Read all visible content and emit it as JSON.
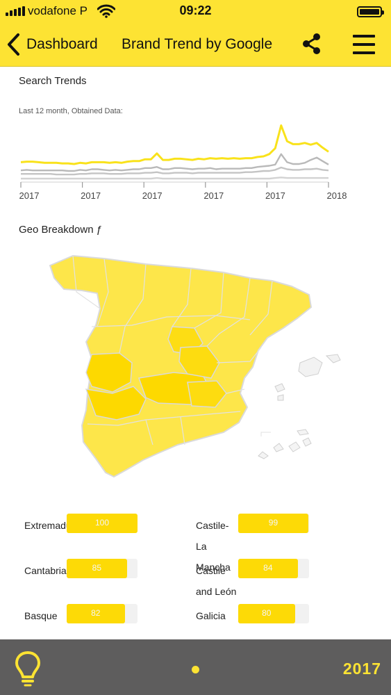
{
  "status_bar": {
    "carrier": "vodafone P",
    "time": "09:22"
  },
  "nav": {
    "back_label": "Dashboard",
    "title": "Brand Trend by Google",
    "icons": [
      "chevron-left-icon",
      "share-icon",
      "hamburger-menu-icon"
    ]
  },
  "trends": {
    "title": "Search Trends",
    "subtitle": "Last 12 month, Obtained Data:",
    "x_tick_labels": [
      "2017",
      "2017",
      "2017",
      "2017",
      "2017",
      "2018"
    ]
  },
  "chart_data": {
    "type": "line",
    "title": "Search Trends",
    "subtitle": "Last 12 month, Obtained Data:",
    "x_tick_labels": [
      "2017",
      "2017",
      "2017",
      "2017",
      "2017",
      "2018"
    ],
    "x": [
      0,
      1,
      2,
      3,
      4,
      5,
      6,
      7,
      8,
      9,
      10,
      11,
      12,
      13,
      14,
      15,
      16,
      17,
      18,
      19,
      20,
      21,
      22,
      23,
      24,
      25,
      26,
      27,
      28,
      29,
      30,
      31,
      32,
      33,
      34,
      35,
      36,
      37,
      38,
      39,
      40,
      41,
      42,
      43,
      44,
      45,
      46,
      47,
      48,
      49,
      50,
      51,
      52
    ],
    "ylim": [
      0,
      100
    ],
    "grid": false,
    "legend": "none",
    "series": [
      {
        "color": "#f9e21b",
        "values": [
          34,
          35,
          35,
          34,
          33,
          33,
          33,
          32,
          32,
          31,
          33,
          32,
          34,
          34,
          34,
          33,
          34,
          33,
          35,
          36,
          36,
          39,
          39,
          49,
          38,
          38,
          40,
          40,
          39,
          38,
          40,
          39,
          41,
          40,
          41,
          40,
          41,
          40,
          41,
          41,
          43,
          44,
          48,
          58,
          97,
          70,
          65,
          65,
          67,
          64,
          67,
          59,
          52
        ]
      },
      {
        "color": "#b9b9b9",
        "values": [
          20,
          21,
          20,
          20,
          20,
          20,
          20,
          20,
          19,
          19,
          21,
          20,
          22,
          22,
          21,
          20,
          21,
          20,
          21,
          22,
          22,
          24,
          24,
          26,
          22,
          22,
          24,
          24,
          23,
          22,
          23,
          23,
          24,
          22,
          23,
          23,
          23,
          23,
          24,
          24,
          26,
          27,
          28,
          30,
          48,
          34,
          31,
          31,
          33,
          38,
          42,
          36,
          30
        ]
      },
      {
        "color": "#c4c4c4",
        "values": [
          14,
          14,
          14,
          14,
          14,
          14,
          13,
          13,
          13,
          13,
          14,
          14,
          15,
          15,
          15,
          14,
          14,
          14,
          15,
          15,
          15,
          16,
          16,
          17,
          15,
          15,
          16,
          16,
          16,
          15,
          16,
          16,
          16,
          16,
          16,
          16,
          16,
          16,
          17,
          17,
          18,
          19,
          19,
          21,
          25,
          22,
          21,
          21,
          22,
          22,
          23,
          21,
          20
        ]
      },
      {
        "color": "#d2d2d2",
        "values": [
          6,
          6,
          6,
          6,
          6,
          6,
          6,
          6,
          6,
          6,
          6,
          6,
          6,
          6,
          6,
          6,
          6,
          6,
          6,
          6,
          6,
          6,
          6,
          7,
          6,
          6,
          6,
          6,
          6,
          6,
          6,
          6,
          6,
          6,
          6,
          6,
          6,
          6,
          6,
          6,
          6,
          6,
          6,
          7,
          8,
          7,
          7,
          7,
          7,
          7,
          7,
          7,
          7
        ]
      }
    ]
  },
  "geo": {
    "title": "Geo Breakdown ƒ"
  },
  "regions": [
    {
      "name": "Extremadu",
      "value": 100,
      "label": "100",
      "column": "left"
    },
    {
      "name": "Castile-La Mancha",
      "value": 99,
      "label": "99",
      "column": "right"
    },
    {
      "name": "Cantabria",
      "value": 85,
      "label": "85",
      "column": "left"
    },
    {
      "name": "Castile and León",
      "value": 84,
      "label": "84",
      "column": "right"
    },
    {
      "name": "Basque",
      "value": 82,
      "label": "82",
      "column": "left"
    },
    {
      "name": "Galicia",
      "value": 80,
      "label": "80",
      "column": "right"
    }
  ],
  "footer": {
    "year": "2017",
    "icons": [
      "lightbulb-icon",
      "page-indicator-dot"
    ]
  },
  "colors": {
    "brand_yellow": "#fde333",
    "bar_yellow": "#fdda06",
    "footer_grey": "#5e5d5d"
  }
}
